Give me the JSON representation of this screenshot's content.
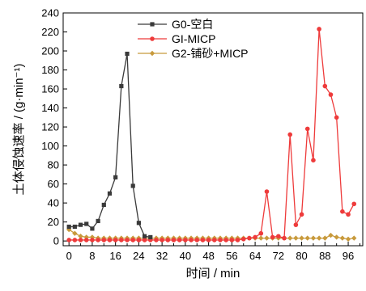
{
  "chart_data": {
    "type": "line",
    "title": "",
    "xlabel": "时间 / min",
    "ylabel": "土体侵蚀速率 / (g·min⁻¹)",
    "xlim": [
      -2,
      101
    ],
    "ylim": [
      -5,
      240
    ],
    "xticks": [
      0,
      4,
      8,
      12,
      16,
      20,
      24,
      28,
      32,
      36,
      40,
      44,
      48,
      52,
      56,
      60,
      64,
      68,
      72,
      76,
      80,
      84,
      88,
      92,
      96,
      100
    ],
    "xtick_labels": [
      "0",
      "",
      "8",
      "",
      "16",
      "",
      "24",
      "",
      "32",
      "",
      "40",
      "",
      "48",
      "",
      "56",
      "",
      "64",
      "",
      "72",
      "",
      "80",
      "",
      "88",
      "",
      "96",
      ""
    ],
    "yticks": [
      0,
      20,
      40,
      60,
      80,
      100,
      120,
      140,
      160,
      180,
      200,
      220,
      240
    ],
    "ytick_labels": [
      "0",
      "20",
      "40",
      "60",
      "80",
      "100",
      "120",
      "140",
      "160",
      "180",
      "200",
      "220",
      "240"
    ],
    "grid": false,
    "legend_position": "top-center",
    "series": [
      {
        "name": "G0-空白",
        "color": "#3a3a3a",
        "marker": "square",
        "x": [
          0,
          2,
          4,
          6,
          8,
          10,
          12,
          14,
          16,
          18,
          20,
          22,
          24,
          26,
          28
        ],
        "y": [
          15,
          15,
          17,
          18,
          13,
          21,
          38,
          50,
          67,
          163,
          197,
          58,
          19,
          5,
          4
        ]
      },
      {
        "name": "GI-MICP",
        "color": "#ee3b3b",
        "marker": "circle",
        "x": [
          0,
          2,
          4,
          6,
          8,
          10,
          12,
          14,
          16,
          18,
          20,
          22,
          24,
          26,
          28,
          30,
          32,
          34,
          36,
          38,
          40,
          42,
          44,
          46,
          48,
          50,
          52,
          54,
          56,
          58,
          60,
          62,
          64,
          66,
          68,
          70,
          72,
          74,
          76,
          78,
          80,
          82,
          84,
          86,
          88,
          90,
          92,
          94,
          96,
          98
        ],
        "y": [
          1,
          1,
          1,
          1,
          1,
          1,
          1,
          1,
          1,
          1,
          1,
          1,
          1,
          1,
          1,
          1,
          1,
          1,
          1,
          1,
          1,
          1,
          1,
          1,
          1,
          1,
          1,
          1,
          1,
          1,
          2,
          3,
          4,
          8,
          52,
          4,
          5,
          3,
          112,
          17,
          28,
          118,
          85,
          223,
          163,
          154,
          130,
          31,
          28,
          39
        ]
      },
      {
        "name": "G2-铺砂+MICP",
        "color": "#c89a3c",
        "marker": "diamond",
        "x": [
          0,
          2,
          4,
          6,
          8,
          10,
          12,
          14,
          16,
          18,
          20,
          22,
          24,
          26,
          28,
          30,
          32,
          34,
          36,
          38,
          40,
          42,
          44,
          46,
          48,
          50,
          52,
          54,
          56,
          58,
          60,
          62,
          64,
          66,
          68,
          70,
          72,
          74,
          76,
          78,
          80,
          82,
          84,
          86,
          88,
          90,
          92,
          94,
          96,
          98
        ],
        "y": [
          12,
          8,
          5,
          4,
          4,
          3,
          3,
          3,
          3,
          3,
          3,
          3,
          3,
          3,
          3,
          3,
          3,
          3,
          3,
          3,
          3,
          3,
          3,
          3,
          3,
          3,
          3,
          3,
          3,
          3,
          3,
          3,
          3,
          3,
          3,
          3,
          3,
          3,
          3,
          3,
          3,
          3,
          3,
          3,
          3,
          6,
          4,
          3,
          2,
          3
        ]
      }
    ]
  }
}
